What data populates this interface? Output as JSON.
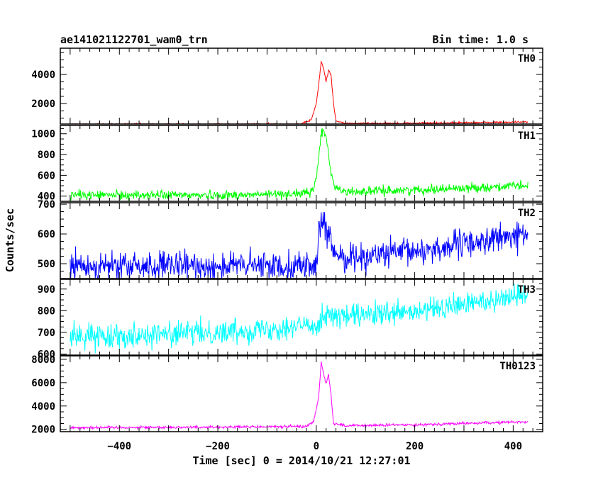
{
  "chart_data": {
    "type": "line",
    "title": "ae141021122701_wam0_trn",
    "bin_label": "Bin time: 1.0 s",
    "xlabel": "Time [sec] 0 = 2014/10/21 12:27:01",
    "ylabel": "Counts/sec",
    "xlim": [
      -520,
      460
    ],
    "x_ticks": [
      -400,
      -200,
      0,
      200,
      400
    ],
    "grid": false,
    "panels": [
      {
        "name": "TH0",
        "color": "#ff0000",
        "ylim": [
          600,
          5800
        ],
        "y_ticks": [
          2000,
          4000
        ],
        "profile": [
          [
            -500,
            590
          ],
          [
            -150,
            590
          ],
          [
            -30,
            600
          ],
          [
            -10,
            900
          ],
          [
            0,
            2000
          ],
          [
            5,
            3300
          ],
          [
            10,
            4900
          ],
          [
            15,
            4400
          ],
          [
            20,
            3500
          ],
          [
            25,
            4300
          ],
          [
            30,
            4000
          ],
          [
            35,
            2000
          ],
          [
            40,
            800
          ],
          [
            60,
            640
          ],
          [
            200,
            660
          ],
          [
            430,
            740
          ]
        ],
        "noise": 30
      },
      {
        "name": "TH1",
        "color": "#00ff00",
        "ylim": [
          350,
          1080
        ],
        "y_ticks": [
          400,
          600,
          800,
          1000
        ],
        "profile": [
          [
            -500,
            410
          ],
          [
            -150,
            410
          ],
          [
            -10,
            430
          ],
          [
            0,
            560
          ],
          [
            10,
            1000
          ],
          [
            15,
            1040
          ],
          [
            20,
            950
          ],
          [
            25,
            800
          ],
          [
            30,
            620
          ],
          [
            40,
            480
          ],
          [
            60,
            440
          ],
          [
            200,
            460
          ],
          [
            430,
            500
          ]
        ],
        "noise": 22
      },
      {
        "name": "TH2",
        "color": "#0000ff",
        "ylim": [
          450,
          705
        ],
        "y_ticks": [
          500,
          600,
          700
        ],
        "profile": [
          [
            -500,
            490
          ],
          [
            -200,
            492
          ],
          [
            0,
            495
          ],
          [
            5,
            590
          ],
          [
            10,
            640
          ],
          [
            15,
            640
          ],
          [
            20,
            600
          ],
          [
            25,
            590
          ],
          [
            35,
            540
          ],
          [
            60,
            520
          ],
          [
            200,
            540
          ],
          [
            430,
            600
          ]
        ],
        "noise": 24
      },
      {
        "name": "TH3",
        "color": "#00ffff",
        "ylim": [
          595,
          945
        ],
        "y_ticks": [
          600,
          700,
          800,
          900
        ],
        "profile": [
          [
            -500,
            680
          ],
          [
            -200,
            700
          ],
          [
            0,
            735
          ],
          [
            20,
            790
          ],
          [
            40,
            770
          ],
          [
            200,
            790
          ],
          [
            430,
            880
          ]
        ],
        "noise": 28
      },
      {
        "name": "TH0123",
        "color": "#ff00ff",
        "ylim": [
          1800,
          8300
        ],
        "y_ticks": [
          2000,
          4000,
          6000,
          8000
        ],
        "profile": [
          [
            -500,
            2150
          ],
          [
            -150,
            2200
          ],
          [
            -20,
            2250
          ],
          [
            -5,
            2700
          ],
          [
            5,
            4800
          ],
          [
            10,
            7800
          ],
          [
            15,
            6800
          ],
          [
            20,
            5900
          ],
          [
            25,
            6700
          ],
          [
            30,
            5000
          ],
          [
            35,
            2500
          ],
          [
            60,
            2300
          ],
          [
            200,
            2400
          ],
          [
            430,
            2650
          ]
        ],
        "noise": 60
      }
    ]
  }
}
